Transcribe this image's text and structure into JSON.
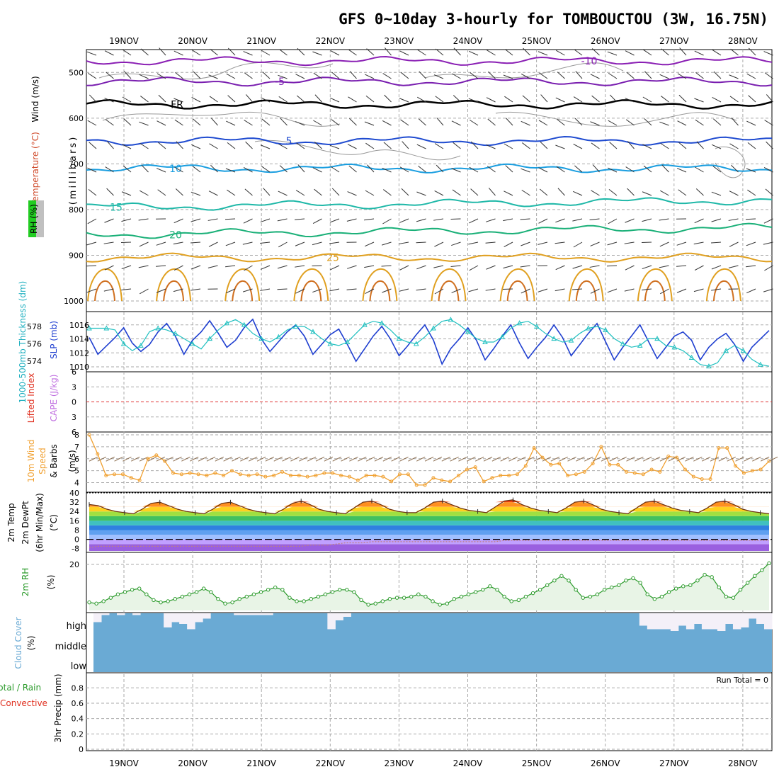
{
  "title": "GFS 0~10day 3-hourly for TOMBOUCTOU (3W, 16.75N)",
  "days": [
    "19NOV",
    "20NOV",
    "21NOV",
    "22NOV",
    "23NOV",
    "24NOV",
    "25NOV",
    "26NOV",
    "27NOV",
    "28NOV"
  ],
  "panel_labels": {
    "upper_wind": "Wind (m/s)",
    "upper_temp": "Temperature (°C)",
    "upper_mb": "(millibars)",
    "upper_rh": "RH (%)",
    "thickness": "1000-500mb Thickness (dm)",
    "slp": "SLP (mb)",
    "lifted": "Lifted Index",
    "cape": "CAPE (J/kg)",
    "wind10_a": "10m Wind",
    "wind10_b": "Speed",
    "wind10_c": "& Barbs",
    "wind10_unit": "(m/s)",
    "t2_a": "2m Temp",
    "t2_b": "2m DewPt",
    "t2_c": "(6hr Min/Max)",
    "t2_unit": "(°C)",
    "rh2_a": "2m RH",
    "rh2_unit": "(%)",
    "cloud_a": "Cloud Cover",
    "cloud_unit": "(%)",
    "precip_a": "Total / Rain",
    "precip_b": "Convective",
    "precip_c": "3hr Precip (mm)",
    "run_total": "Run Total = 0"
  },
  "cloud_levels": [
    "high",
    "middle",
    "low"
  ],
  "colors": {
    "freezing": "#000000",
    "temp_neg10": "#8a1fb4",
    "temp_neg5": "#7a1fb0",
    "temp_5": "#1f4bd0",
    "temp_10": "#1a9ee0",
    "temp_15": "#1fb8a8",
    "temp_20": "#1ab078",
    "temp_25": "#e0a020",
    "slp": "#1f3fd0",
    "thickness": "#20c0c0",
    "wind10": "#f0a030",
    "rh2": "#2a9a2a",
    "cloud": "#6aaad4"
  },
  "chart_data": [
    {
      "type": "line",
      "name": "upper-air cross section",
      "y_axis": "pressure (millibars)",
      "yticks": [
        500,
        600,
        700,
        800,
        900,
        1000
      ],
      "ylim": [
        1000,
        450
      ],
      "isotherm_labels": [
        "-10",
        "-5",
        "FR",
        "5",
        "10",
        "15",
        "20",
        "25"
      ],
      "isotherms_mb": [
        {
          "label": "-10",
          "level_mb": 475
        },
        {
          "label": "-5",
          "level_mb": 520
        },
        {
          "label": "FR",
          "level_mb": 570
        },
        {
          "label": "5",
          "level_mb": 650
        },
        {
          "label": "10",
          "level_mb": 710
        },
        {
          "label": "15",
          "level_mb": 795
        },
        {
          "label": "20",
          "level_mb": 855
        },
        {
          "label": "25",
          "level_mb": 905
        }
      ]
    },
    {
      "type": "line",
      "x_categories_every_3hr": true,
      "left_axis": "1000-500mb Thickness (dm)",
      "left_ticks": [
        574,
        576,
        578
      ],
      "right_axis": "SLP (mb)",
      "right_ticks": [
        1010,
        1012,
        1014,
        1016
      ],
      "series": [
        {
          "name": "SLP (mb)",
          "values": [
            1014.2,
            1011.8,
            1013,
            1014.2,
            1015.6,
            1013.4,
            1012.2,
            1013.2,
            1015,
            1016.2,
            1014.4,
            1011.8,
            1013.8,
            1015,
            1016.6,
            1014.8,
            1012.8,
            1013.8,
            1015.6,
            1016.8,
            1014,
            1012.2,
            1013.6,
            1015,
            1016,
            1014.4,
            1011.8,
            1013.2,
            1014.6,
            1015.4,
            1013.2,
            1010.8,
            1012.6,
            1014.4,
            1015.8,
            1014,
            1011.6,
            1013,
            1014.6,
            1016,
            1013.8,
            1010.4,
            1012.6,
            1014,
            1015.6,
            1013.8,
            1011,
            1012.6,
            1014.4,
            1016,
            1013.4,
            1011.2,
            1012.8,
            1014.2,
            1016,
            1014.2,
            1011.6,
            1013.2,
            1014.8,
            1016.2,
            1013.6,
            1011,
            1012.8,
            1014.4,
            1016,
            1013.6,
            1011.2,
            1012.8,
            1014.4,
            1015,
            1013.8,
            1011,
            1012.8,
            1014,
            1014.8,
            1013.2,
            1010.8,
            1012.8,
            1014,
            1015.2
          ]
        },
        {
          "name": "1000-500mb Thickness (dm)",
          "values": [
            577.8,
            577.8,
            577.8,
            577.6,
            576,
            575.2,
            575.8,
            577.4,
            577.8,
            577.6,
            577.2,
            576.6,
            576,
            575.4,
            576.6,
            577.6,
            578.4,
            578.8,
            578.2,
            577.2,
            576.6,
            576.2,
            576.8,
            577.6,
            578,
            578,
            577.4,
            576.6,
            576,
            575.8,
            576.2,
            577.2,
            578.2,
            578.6,
            578.4,
            577.6,
            576.6,
            576.2,
            576,
            576.8,
            577.8,
            578.6,
            578.8,
            578.2,
            577.4,
            576.6,
            576.2,
            576.2,
            576.8,
            577.8,
            578.4,
            578.6,
            578,
            577.2,
            576.6,
            576.2,
            576.4,
            577.2,
            577.8,
            578,
            577.6,
            576.6,
            576,
            575.6,
            575.8,
            576.6,
            576.6,
            575.8,
            575.6,
            575.2,
            574.4,
            573.6,
            573.4,
            573.8,
            575.2,
            575.8,
            575.2,
            574.2,
            573.6,
            573.4
          ]
        }
      ]
    },
    {
      "type": "line",
      "name": "Lifted Index / CAPE",
      "yticks": [
        -6,
        -3,
        0,
        3,
        6
      ],
      "ylim": [
        6,
        -6
      ]
    },
    {
      "type": "line",
      "name": "10m Wind Speed",
      "yticks": [
        4,
        5,
        6,
        7,
        8
      ],
      "ylim": [
        3.5,
        8
      ],
      "values": [
        8,
        6.4,
        4.6,
        4.7,
        4.7,
        4.4,
        4.2,
        6,
        6.3,
        5.8,
        4.8,
        4.7,
        4.8,
        4.7,
        4.6,
        4.8,
        4.6,
        5,
        4.7,
        4.6,
        4.7,
        4.5,
        4.6,
        4.9,
        4.6,
        4.6,
        4.5,
        4.6,
        4.8,
        4.8,
        4.6,
        4.5,
        4.2,
        4.6,
        4.6,
        4.5,
        4.1,
        4.7,
        4.7,
        3.8,
        3.8,
        4.4,
        4.2,
        4.1,
        4.6,
        5.1,
        5.3,
        4.1,
        4.4,
        4.6,
        4.6,
        4.7,
        5.4,
        6.9,
        6.1,
        5.5,
        5.6,
        4.6,
        4.7,
        4.9,
        5.6,
        7,
        5.5,
        5.5,
        4.9,
        4.8,
        4.7,
        5.1,
        4.9,
        6.2,
        6.1,
        5.1,
        4.5,
        4.3,
        4.3,
        6.9,
        6.9,
        5.4,
        4.8,
        5.0,
        5.1,
        5.8
      ]
    },
    {
      "type": "area",
      "name": "2m Temp / DewPt",
      "yticks": [
        -8,
        0,
        8,
        16,
        24,
        32,
        40
      ],
      "ylim": [
        -10,
        40
      ],
      "temp_series": [
        30,
        29,
        26,
        24,
        23,
        22,
        26,
        31,
        32,
        29,
        26,
        24,
        23,
        22,
        26,
        31,
        32,
        29,
        26,
        24,
        23,
        22,
        26,
        31,
        33,
        30,
        26,
        24,
        23,
        22,
        27,
        32,
        33,
        30,
        26,
        24,
        23,
        23,
        27,
        32,
        33,
        30,
        27,
        25,
        24,
        23,
        28,
        33,
        34,
        30,
        27,
        25,
        24,
        23,
        27,
        32,
        33,
        30,
        26,
        24,
        23,
        22,
        27,
        32,
        33,
        30,
        27,
        25,
        24,
        23,
        27,
        32,
        33,
        30,
        26,
        24,
        23,
        22
      ],
      "dewpt_series": [
        -7,
        -6,
        -6,
        -6,
        -6,
        -6,
        -6,
        -6,
        -6,
        -6,
        -6,
        -6,
        -6,
        -6,
        -6,
        -6,
        -6,
        -6,
        -6,
        -6,
        -6,
        -6,
        -6,
        -6,
        -6,
        -5,
        -5,
        -5,
        -4,
        -3,
        -3,
        -3,
        -2,
        -2,
        -2,
        -2,
        -2,
        -2,
        -2,
        -2,
        -2,
        -2,
        -2,
        -2,
        -2,
        -2,
        -2,
        -1,
        -1,
        -1,
        -1,
        -1,
        -1,
        -1,
        -1,
        -1,
        -1,
        -1,
        -1,
        -1,
        -1,
        -1,
        -1,
        -1,
        -1,
        -1,
        -1,
        -1,
        -1,
        -1,
        -1,
        -1,
        -1,
        -1,
        -1,
        -1,
        -1,
        -1
      ]
    },
    {
      "type": "line",
      "name": "2m RH",
      "yticks": [
        20
      ],
      "ylim": [
        0,
        24
      ],
      "values": [
        3.5,
        3,
        4,
        5.5,
        7,
        8,
        9,
        9.5,
        7,
        4.5,
        3.5,
        4,
        5,
        6,
        7,
        8,
        9.5,
        8,
        5,
        3,
        3.5,
        5,
        6,
        7,
        8,
        9,
        10,
        9,
        5.5,
        4,
        4,
        5,
        6,
        7,
        8,
        9,
        9,
        8,
        4.5,
        2.5,
        3,
        4,
        5,
        5.5,
        5.5,
        6,
        7,
        6,
        4,
        2.5,
        3,
        5,
        6,
        7,
        8,
        9,
        10.5,
        9,
        6,
        4,
        4.5,
        6,
        7.5,
        9,
        11,
        13,
        15,
        13,
        9,
        5.5,
        6,
        7,
        9,
        10,
        11,
        13,
        14,
        12,
        7,
        5,
        6,
        8,
        9.5,
        10.5,
        11,
        13,
        15.5,
        14.5,
        10,
        6,
        5.5,
        9,
        12,
        15,
        17.5,
        20.5
      ]
    },
    {
      "type": "bar",
      "name": "Cloud Cover (%)",
      "levels": [
        "high",
        "middle",
        "low"
      ],
      "high_clear_fraction": [
        0.5,
        0.1,
        0,
        0.1,
        0,
        0.1,
        0,
        0,
        0,
        0.8,
        0.5,
        0.6,
        0.9,
        0.5,
        0.3,
        0,
        0,
        0,
        0.1,
        0.1,
        0.1,
        0.1,
        0.1,
        0,
        0,
        0,
        0,
        0,
        0,
        0,
        0.9,
        0.4,
        0.2,
        0,
        0,
        0,
        0,
        0,
        0,
        0,
        0,
        0,
        0,
        0,
        0,
        0,
        0,
        0,
        0,
        0,
        0,
        0,
        0,
        0,
        0,
        0,
        0,
        0,
        0,
        0,
        0,
        0,
        0,
        0,
        0,
        0,
        0,
        0,
        0,
        0,
        0.7,
        0.9,
        0.9,
        0.9,
        1,
        0.7,
        0.9,
        0.6,
        0.9,
        0.9,
        1,
        0.6,
        0.9,
        0.8,
        0.3,
        0.6,
        0.9
      ]
    },
    {
      "type": "bar",
      "name": "3hr Precip (mm)",
      "yticks": [
        0,
        0.2,
        0.4,
        0.6,
        0.8
      ],
      "ylim": [
        0,
        0.95
      ],
      "values": []
    }
  ]
}
